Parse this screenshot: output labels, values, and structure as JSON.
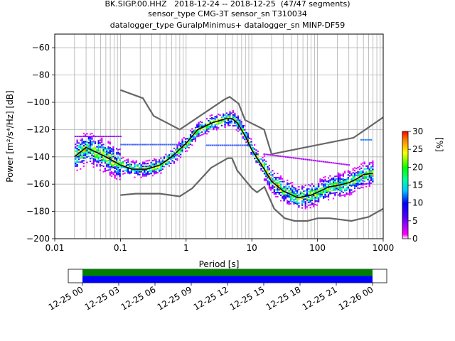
{
  "header": {
    "line1": "BK.SIGP.00.HHZ   2018-12-24 -- 2018-12-25  (47/47 segments)",
    "line2": "sensor_type CMG-3T sensor_sn T310034",
    "line3": "datalogger_type GuralpMinimus+ datalogger_sn MINP-DF59"
  },
  "chart_data": [
    {
      "type": "heatmap",
      "title": "BK.SIGP.00.HHZ   2018-12-24 -- 2018-12-25  (47/47 segments)",
      "subtitle": [
        "sensor_type CMG-3T sensor_sn T310034",
        "datalogger_type GuralpMinimus+ datalogger_sn MINP-DF59"
      ],
      "xlabel": "Period [s]",
      "ylabel": "Power [m²/s⁴/Hz] [dB]",
      "xscale": "log",
      "xlim": [
        0.01,
        1000
      ],
      "ylim": [
        -200,
        -50
      ],
      "xticks": [
        "0.01",
        "0.1",
        "1",
        "10",
        "100",
        "1000"
      ],
      "yticks": [
        "-200",
        "-180",
        "-160",
        "-140",
        "-120",
        "-100",
        "-80",
        "-60"
      ],
      "grid": true,
      "colorbar": {
        "label": "[%]",
        "min": 0,
        "max": 30,
        "ticks": [
          "0",
          "5",
          "10",
          "15",
          "20",
          "25",
          "30"
        ]
      },
      "noise_models": {
        "high": [
          [
            0.1,
            -91
          ],
          [
            0.22,
            -97
          ],
          [
            0.32,
            -110
          ],
          [
            0.8,
            -120
          ],
          [
            3.8,
            -98
          ],
          [
            4.6,
            -96
          ],
          [
            6.3,
            -101
          ],
          [
            7.9,
            -113
          ],
          [
            15.4,
            -120
          ],
          [
            20,
            -138
          ],
          [
            354,
            -126
          ],
          [
            1000,
            -111
          ]
        ],
        "low": [
          [
            0.1,
            -168
          ],
          [
            0.17,
            -167
          ],
          [
            0.4,
            -167
          ],
          [
            0.8,
            -169
          ],
          [
            1.24,
            -163
          ],
          [
            2.4,
            -148
          ],
          [
            4.3,
            -141
          ],
          [
            5,
            -141
          ],
          [
            6,
            -150
          ],
          [
            10,
            -163
          ],
          [
            12,
            -166
          ],
          [
            15.6,
            -162
          ],
          [
            21.9,
            -178
          ],
          [
            31.6,
            -185
          ],
          [
            45,
            -187
          ],
          [
            70,
            -187
          ],
          [
            101,
            -185
          ],
          [
            154,
            -185
          ],
          [
            328,
            -187
          ],
          [
            600,
            -184
          ],
          [
            1000,
            -178
          ]
        ]
      },
      "mean_curve": [
        [
          0.02,
          -140
        ],
        [
          0.03,
          -133
        ],
        [
          0.04,
          -136
        ],
        [
          0.06,
          -140
        ],
        [
          0.1,
          -146
        ],
        [
          0.15,
          -149
        ],
        [
          0.25,
          -149
        ],
        [
          0.4,
          -146
        ],
        [
          0.6,
          -140
        ],
        [
          1,
          -130
        ],
        [
          1.5,
          -120
        ],
        [
          2.5,
          -115
        ],
        [
          4,
          -112
        ],
        [
          5,
          -112
        ],
        [
          6,
          -115
        ],
        [
          8,
          -125
        ],
        [
          10,
          -135
        ],
        [
          15,
          -148
        ],
        [
          20,
          -158
        ],
        [
          30,
          -165
        ],
        [
          50,
          -170
        ],
        [
          80,
          -168
        ],
        [
          100,
          -166
        ],
        [
          150,
          -162
        ],
        [
          200,
          -161
        ],
        [
          300,
          -159
        ],
        [
          400,
          -156
        ],
        [
          500,
          -153
        ],
        [
          700,
          -152
        ]
      ]
    },
    {
      "type": "bar",
      "xlabel": "",
      "ylabel": "",
      "x_tick_labels": [
        "12-25 00",
        "12-25 03",
        "12-25 06",
        "12-25 09",
        "12-25 12",
        "12-25 15",
        "12-25 18",
        "12-25 21",
        "12-26 00"
      ],
      "series": [
        {
          "name": "",
          "color": "#008000",
          "start": "12-25 00",
          "end": "12-26 00"
        },
        {
          "name": "",
          "color": "#0000ff",
          "start": "12-25 00",
          "end": "12-26 00"
        }
      ]
    }
  ]
}
